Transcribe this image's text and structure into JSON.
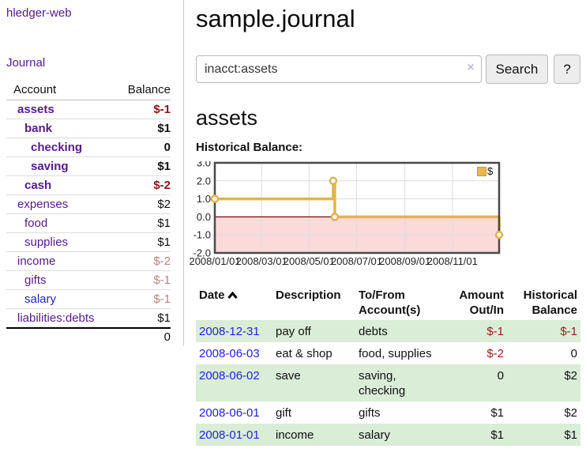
{
  "sidebar": {
    "brand": "hledger-web",
    "journal_link": "Journal",
    "table": {
      "account_header": "Account",
      "balance_header": "Balance",
      "rows": [
        {
          "name": "assets",
          "balance": "$-1"
        },
        {
          "name": "bank",
          "balance": "$1"
        },
        {
          "name": "checking",
          "balance": "0"
        },
        {
          "name": "saving",
          "balance": "$1"
        },
        {
          "name": "cash",
          "balance": "$-2"
        },
        {
          "name": "expenses",
          "balance": "$2"
        },
        {
          "name": "food",
          "balance": "$1"
        },
        {
          "name": "supplies",
          "balance": "$1"
        },
        {
          "name": "income",
          "balance": "$-2"
        },
        {
          "name": "gifts",
          "balance": "$-1"
        },
        {
          "name": "salary",
          "balance": "$-1"
        },
        {
          "name": "liabilities:debts",
          "balance": "$1"
        }
      ],
      "total": "0"
    }
  },
  "main": {
    "title": "sample.journal",
    "search": {
      "value": "inacct:assets",
      "clear_icon": "×",
      "button_label": "Search",
      "help_label": "?"
    },
    "account_heading": "assets",
    "table": {
      "headers": {
        "date": "Date",
        "description": "Description",
        "accounts": "To/From\nAccount(s)",
        "amount": "Amount\nOut/In",
        "balance": "Historical\nBalance"
      },
      "rows": [
        {
          "date": "2008-12-31",
          "description": "pay off",
          "accounts": "debts",
          "amount": "$-1",
          "balance": "$-1"
        },
        {
          "date": "2008-06-03",
          "description": "eat & shop",
          "accounts": "food, supplies",
          "amount": "$-2",
          "balance": "0"
        },
        {
          "date": "2008-06-02",
          "description": "save",
          "accounts": "saving,\nchecking",
          "amount": "0",
          "balance": "$2"
        },
        {
          "date": "2008-06-01",
          "description": "gift",
          "accounts": "gifts",
          "amount": "$1",
          "balance": "$2"
        },
        {
          "date": "2008-01-01",
          "description": "income",
          "accounts": "salary",
          "amount": "$1",
          "balance": "$1"
        }
      ]
    }
  },
  "chart_data": {
    "type": "line",
    "title": "Historical Balance:",
    "series_name": "$",
    "step": true,
    "x_domain_days": [
      0,
      365
    ],
    "ylim": [
      -2,
      3
    ],
    "y_ticks": [
      3.0,
      2.0,
      1.0,
      0.0,
      -1.0,
      -2.0
    ],
    "x_ticks": [
      {
        "day": 0,
        "label": "2008/01/01"
      },
      {
        "day": 60,
        "label": "2008/03/01"
      },
      {
        "day": 121,
        "label": "2008/05/01"
      },
      {
        "day": 182,
        "label": "2008/07/01"
      },
      {
        "day": 244,
        "label": "2008/09/01"
      },
      {
        "day": 305,
        "label": "2008/11/01"
      }
    ],
    "points": [
      {
        "date": "2008-01-01",
        "day": 0,
        "value": 1
      },
      {
        "date": "2008-06-01",
        "day": 152,
        "value": 2
      },
      {
        "date": "2008-06-03",
        "day": 154,
        "value": 0
      },
      {
        "date": "2008-12-31",
        "day": 365,
        "value": -1
      }
    ],
    "colors": {
      "line": "#e3b44a",
      "marker_fill": "#ffffff",
      "negative_fill": "#fbdada",
      "zero_line": "#8b0000",
      "grid": "#dddddd",
      "border": "#4a4a4a"
    }
  }
}
